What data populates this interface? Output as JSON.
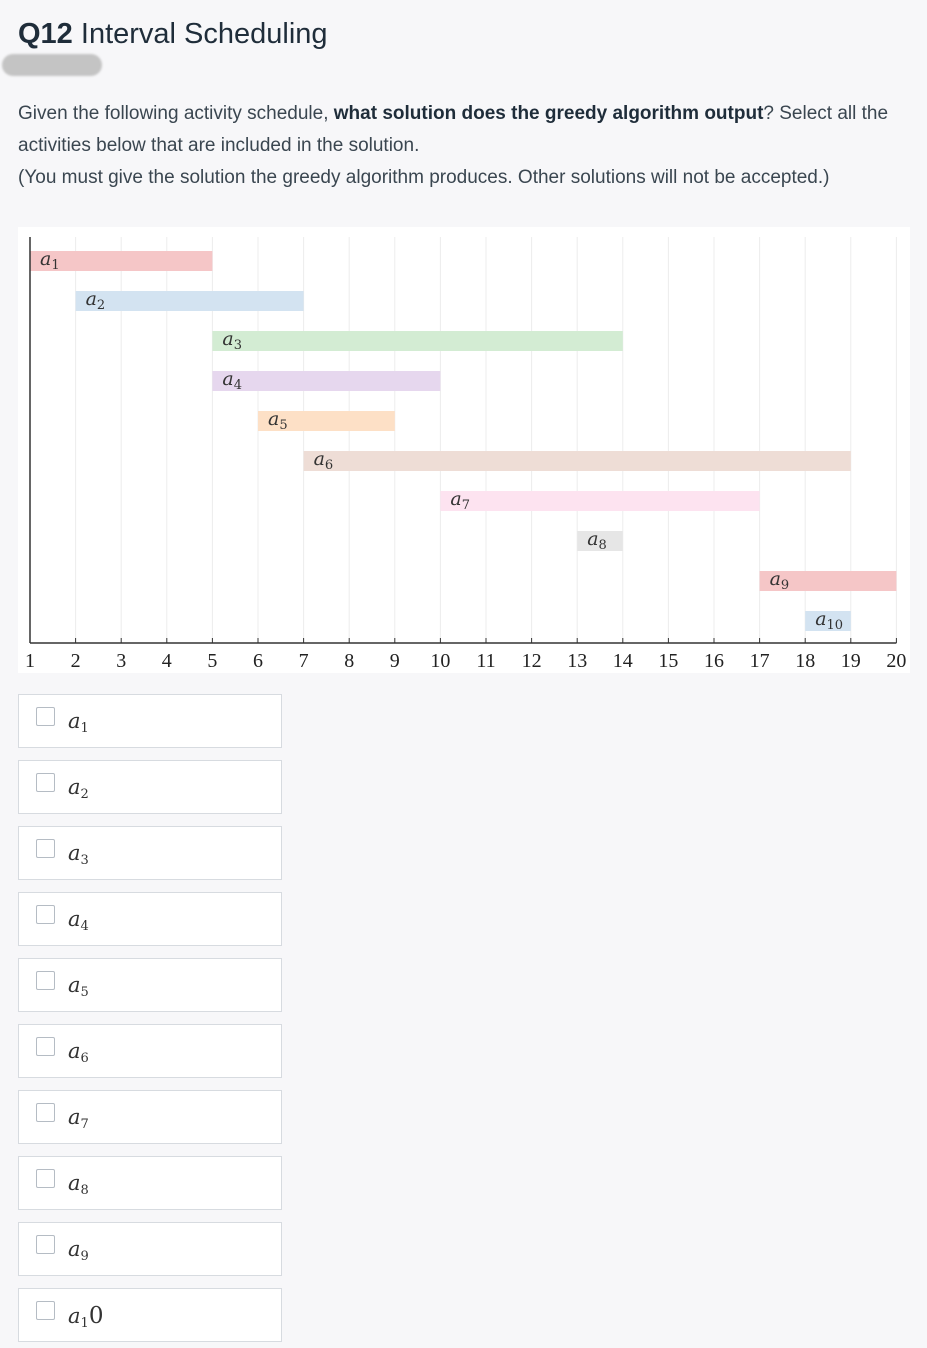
{
  "question": {
    "number": "Q12",
    "title": "Interval Scheduling",
    "prompt_pre": "Given the following activity schedule, ",
    "prompt_bold": "what solution does the greedy algorithm output",
    "prompt_post": "? Select all the activities below that are included in the solution.",
    "note": "(You must give the solution the greedy algorithm produces.  Other solutions will not be accepted.)"
  },
  "chart_data": {
    "type": "bar",
    "orientation": "horizontal",
    "x_ticks": [
      1,
      2,
      3,
      4,
      5,
      6,
      7,
      8,
      9,
      10,
      11,
      12,
      13,
      14,
      15,
      16,
      17,
      18,
      19,
      20
    ],
    "xlim": [
      1,
      20
    ],
    "grid": true,
    "activities": [
      {
        "base": "a",
        "sub": "1",
        "start": 1,
        "end": 5,
        "color": "#f5c6c7"
      },
      {
        "base": "a",
        "sub": "2",
        "start": 2,
        "end": 7,
        "color": "#d3e3f1"
      },
      {
        "base": "a",
        "sub": "3",
        "start": 5,
        "end": 14,
        "color": "#d3ecd3"
      },
      {
        "base": "a",
        "sub": "4",
        "start": 5,
        "end": 10,
        "color": "#e6d7ee"
      },
      {
        "base": "a",
        "sub": "5",
        "start": 6,
        "end": 9,
        "color": "#fde0c6"
      },
      {
        "base": "a",
        "sub": "6",
        "start": 7,
        "end": 19,
        "color": "#eeddd6"
      },
      {
        "base": "a",
        "sub": "7",
        "start": 10,
        "end": 17,
        "color": "#fde3f0"
      },
      {
        "base": "a",
        "sub": "8",
        "start": 13,
        "end": 14,
        "color": "#e6e6e6"
      },
      {
        "base": "a",
        "sub": "9",
        "start": 17,
        "end": 20,
        "color": "#f5c6c7"
      },
      {
        "base": "a",
        "sub": "10",
        "start": 18,
        "end": 19,
        "color": "#d3e3f1"
      }
    ]
  },
  "options": [
    {
      "base": "a",
      "sub": "1",
      "tail": "",
      "checked": false
    },
    {
      "base": "a",
      "sub": "2",
      "tail": "",
      "checked": false
    },
    {
      "base": "a",
      "sub": "3",
      "tail": "",
      "checked": false
    },
    {
      "base": "a",
      "sub": "4",
      "tail": "",
      "checked": false
    },
    {
      "base": "a",
      "sub": "5",
      "tail": "",
      "checked": false
    },
    {
      "base": "a",
      "sub": "6",
      "tail": "",
      "checked": false
    },
    {
      "base": "a",
      "sub": "7",
      "tail": "",
      "checked": false
    },
    {
      "base": "a",
      "sub": "8",
      "tail": "",
      "checked": false
    },
    {
      "base": "a",
      "sub": "9",
      "tail": "",
      "checked": false
    },
    {
      "base": "a",
      "sub": "1",
      "tail": "0",
      "checked": false
    }
  ]
}
